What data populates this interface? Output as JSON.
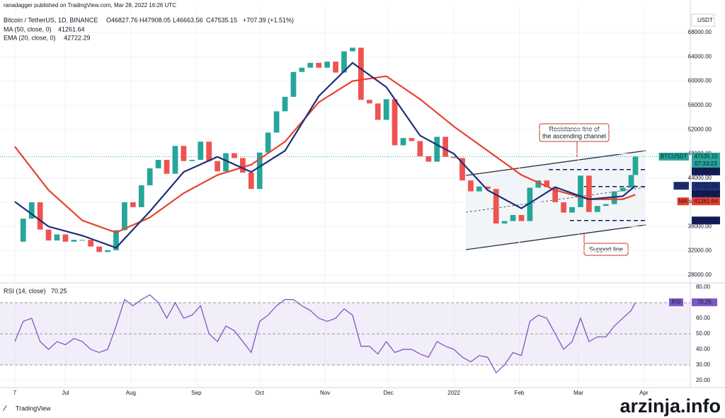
{
  "chart_data": {
    "type": "candlestick",
    "publisher": "ranadagger published on TradingView.com, Mar 28, 2022 16:26 UTC",
    "symbol": "Bitcoin / TetherUS, 1D, BINANCE",
    "ohlc_text": [
      "O46827.76",
      "H47908.05",
      "L46663.56",
      "C47535.15",
      "+707.39 (+1.51%)"
    ],
    "currency": "USDT",
    "countdown": "07:33:23",
    "brand": "TradingView",
    "watermark": "arzinja.info",
    "x": [
      0,
      4,
      8,
      12,
      16,
      20,
      24,
      28,
      32,
      36,
      40,
      44,
      48,
      52,
      56,
      60,
      64,
      68,
      72,
      76,
      80,
      84,
      88,
      92,
      96,
      100,
      104,
      108,
      112,
      116,
      120,
      124,
      128,
      132,
      136,
      140,
      144,
      148,
      152,
      156,
      160,
      164,
      168,
      172,
      176,
      180,
      184,
      188,
      192,
      196,
      200,
      204,
      208,
      212,
      216,
      220,
      224,
      228,
      232,
      236,
      240,
      244,
      248,
      252,
      256,
      260,
      264,
      268,
      272,
      276,
      280,
      284,
      288,
      292,
      294
    ],
    "values": [
      33500,
      37300,
      40000,
      35500,
      33700,
      34700,
      33500,
      33800,
      33800,
      32700,
      31800,
      32100,
      35400,
      40000,
      39200,
      42800,
      45600,
      47000,
      44700,
      49300,
      46800,
      47000,
      50000,
      46800,
      45100,
      48100,
      47300,
      44900,
      42200,
      48200,
      51500,
      55000,
      57400,
      61500,
      62200,
      63000,
      62200,
      63200,
      61400,
      64900,
      65500,
      56900,
      56300,
      53600,
      57000,
      49400,
      50600,
      50100,
      47600,
      46700,
      50800,
      47500,
      47300,
      43600,
      41800,
      42600,
      42200,
      36500,
      36900,
      37900,
      36900,
      42400,
      43600,
      42500,
      40000,
      38300,
      39200,
      44400,
      38400,
      39400,
      39700,
      41800,
      42400,
      44500,
      47535.15
    ],
    "up_color": "#26a69a",
    "down_color": "#ef5350",
    "xlim": [
      -7,
      320
    ],
    "xticks": [
      {
        "value": 0,
        "label": "7"
      },
      {
        "value": 24,
        "label": "Jul"
      },
      {
        "value": 55,
        "label": "Aug"
      },
      {
        "value": 86,
        "label": "Sep"
      },
      {
        "value": 116,
        "label": "Oct"
      },
      {
        "value": 147,
        "label": "Nov"
      },
      {
        "value": 177,
        "label": "Dec"
      },
      {
        "value": 208,
        "label": "2022"
      },
      {
        "value": 239,
        "label": "Feb"
      },
      {
        "value": 267,
        "label": "Mar"
      },
      {
        "value": 298,
        "label": "Apr"
      }
    ],
    "ylim": [
      26700,
      72200
    ],
    "yticks": [
      {
        "value": 68000,
        "label": "68000.00"
      },
      {
        "value": 64000,
        "label": "64000.00"
      },
      {
        "value": 60000,
        "label": "60000.00"
      },
      {
        "value": 56000,
        "label": "56000.00"
      },
      {
        "value": 52000,
        "label": "52000.00"
      },
      {
        "value": 48000,
        "label": "48000.00"
      },
      {
        "value": 44000,
        "label": "44000.00"
      },
      {
        "value": 40000,
        "label": "40000.00"
      },
      {
        "value": 36000,
        "label": "36000.00"
      },
      {
        "value": 32000,
        "label": "32000.00"
      },
      {
        "value": 28000,
        "label": "28000.00"
      }
    ],
    "lines": [
      {
        "name": "MA (50, close, 0)",
        "last": "41261.64",
        "color": "#e8412f",
        "x": [
          0,
          16,
          32,
          48,
          64,
          80,
          96,
          112,
          128,
          144,
          160,
          176,
          192,
          208,
          224,
          240,
          256,
          272,
          288,
          294
        ],
        "values": [
          49200,
          42000,
          37000,
          35000,
          37500,
          41500,
          44500,
          46200,
          50000,
          56500,
          60000,
          60800,
          57000,
          52500,
          48500,
          44500,
          42000,
          40500,
          40500,
          41261.64
        ]
      },
      {
        "name": "EMA (20, close, 0)",
        "last": "42722.29",
        "color": "#1e2f78",
        "x": [
          0,
          16,
          32,
          48,
          64,
          80,
          96,
          112,
          128,
          144,
          160,
          176,
          192,
          208,
          224,
          240,
          256,
          272,
          288,
          294
        ],
        "values": [
          40100,
          36000,
          34500,
          32500,
          38500,
          45000,
          47500,
          45000,
          48500,
          57500,
          63000,
          59000,
          51000,
          48000,
          42000,
          39000,
          42500,
          40500,
          41000,
          42722.29
        ]
      }
    ],
    "levels": [
      45400,
      42594,
      37000
    ],
    "price_tags": [
      {
        "name": "BTCUSDT",
        "value": 47535.15,
        "label": "47535.15",
        "color": "#26a69a"
      },
      {
        "value": 45400,
        "label": "45400.00",
        "color": "#131c5c"
      },
      {
        "name": "EMA",
        "value": 42722.29,
        "label": "42722.29",
        "color": "#1e2f78"
      },
      {
        "value": 42594,
        "label": "42594.00",
        "color": "#131c5c"
      },
      {
        "name": "MA",
        "value": 41261.64,
        "label": "41261.64",
        "color": "#e8412f"
      },
      {
        "value": 37000,
        "label": "37000.00",
        "color": "#131c5c"
      }
    ],
    "annotations": {
      "resistance": [
        "Resistance line of",
        "the ascending channel"
      ],
      "support": [
        "Support line"
      ]
    },
    "rsi": {
      "name": "RSI (14, close)",
      "short": "RSI",
      "last": "70.25",
      "color": "#7e57c2",
      "values": [
        45,
        58,
        60,
        45,
        40,
        45,
        43,
        47,
        45,
        40,
        38,
        40,
        55,
        72,
        68,
        72,
        75,
        70,
        60,
        70,
        60,
        62,
        68,
        50,
        45,
        55,
        52,
        45,
        38,
        58,
        62,
        68,
        72,
        72,
        68,
        65,
        60,
        58,
        60,
        66,
        62,
        42,
        42,
        37,
        45,
        38,
        40,
        40,
        37,
        35,
        45,
        42,
        40,
        35,
        32,
        36,
        35,
        25,
        30,
        38,
        36,
        58,
        62,
        60,
        50,
        40,
        45,
        60,
        45,
        48,
        48,
        55,
        60,
        65,
        70.25
      ],
      "ylim": [
        16.8,
        82.7
      ],
      "band": [
        30,
        70
      ],
      "yticks": [
        {
          "value": 80,
          "label": "80.00"
        },
        {
          "value": 70,
          "label": "70.00"
        },
        {
          "value": 60,
          "label": "60.00"
        },
        {
          "value": 50,
          "label": "50.00"
        },
        {
          "value": 40,
          "label": "40.00"
        },
        {
          "value": 30,
          "label": "30.00"
        },
        {
          "value": 20,
          "label": "20.00"
        }
      ]
    }
  }
}
